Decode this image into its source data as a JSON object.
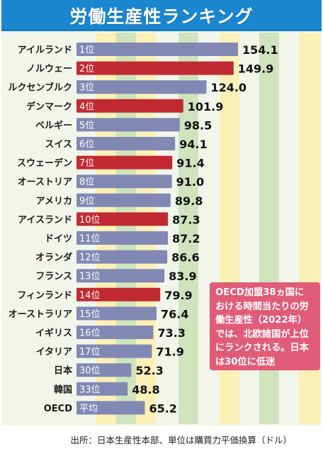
{
  "title": "労働生産性ランキング",
  "note": "OECD加盟38ヵ国に\nおける時間当たりの労\n働生産性（2022年）\nでは、北欧諸国が上位\nにランクされる。日本\nは30位に低迷",
  "source": "出所：日本生産性本部、単位は購買力平価換算（ドル）",
  "colors": {
    "title_bg": "#1a86d0",
    "bar_default": "#8288b4",
    "bar_nordic": "#c12a32",
    "note_bg": "#e05c78",
    "stripe_green": "#cfe3bd",
    "stripe_yellow": "#fbf0b6"
  },
  "chart_data": {
    "type": "bar",
    "orientation": "horizontal",
    "title": "労働生産性ランキング",
    "categories": [
      "アイルランド",
      "ノルウェー",
      "ルクセンブルク",
      "デンマーク",
      "ベルギー",
      "スイス",
      "スウェーデン",
      "オーストリア",
      "アメリカ",
      "アイスランド",
      "ドイツ",
      "オランダ",
      "フランス",
      "フィンランド",
      "オーストラリア",
      "イギリス",
      "イタリア",
      "日本",
      "韓国",
      "OECD"
    ],
    "ranks": [
      "1位",
      "2位",
      "3位",
      "4位",
      "5位",
      "6位",
      "7位",
      "8位",
      "9位",
      "10位",
      "11位",
      "12位",
      "13位",
      "14位",
      "15位",
      "16位",
      "17位",
      "30位",
      "33位",
      "平均"
    ],
    "values": [
      154.1,
      149.9,
      124.0,
      101.9,
      98.5,
      94.1,
      91.4,
      91.0,
      89.8,
      87.3,
      87.2,
      86.6,
      83.9,
      79.9,
      76.4,
      73.3,
      71.9,
      52.3,
      48.8,
      65.2
    ],
    "value_labels": [
      "154.1",
      "149.9",
      "124.0",
      "101.9",
      "98.5",
      "94.1",
      "91.4",
      "91.0",
      "89.8",
      "87.3",
      "87.2",
      "86.6",
      "83.9",
      "79.9",
      "76.4",
      "73.3",
      "71.9",
      "52.3",
      "48.8",
      "65.2"
    ],
    "highlight": [
      false,
      true,
      false,
      true,
      false,
      false,
      true,
      false,
      false,
      true,
      false,
      false,
      false,
      true,
      false,
      false,
      false,
      false,
      false,
      false
    ],
    "xlim": [
      0,
      180
    ],
    "grid": false,
    "legend": "none"
  }
}
